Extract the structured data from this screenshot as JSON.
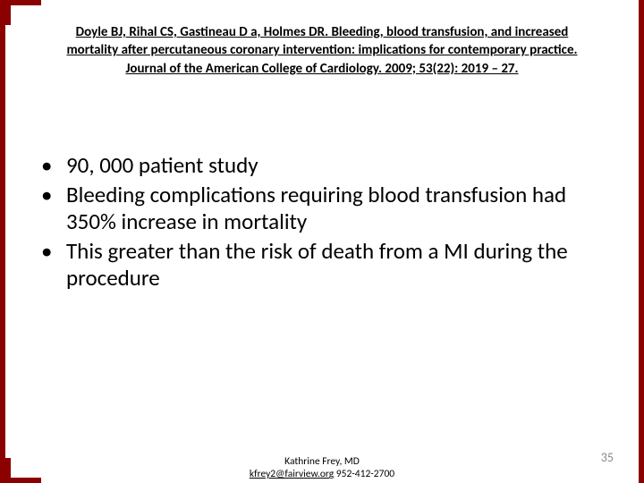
{
  "slide": {
    "border_color": "#8b0000",
    "background_color": "#ffffff"
  },
  "citation": {
    "text": "Doyle BJ, Rihal CS, Gastineau D a, Holmes DR. Bleeding, blood transfusion, and increased mortality after percutaneous coronary intervention: implications for contemporary practice. Journal of the American College of Cardiology. 2009; 53(22): 2019 – 27.",
    "font_size": 15,
    "font_weight": 700,
    "underline": true,
    "color": "#000000",
    "align": "center"
  },
  "bullets": {
    "font_size": 25,
    "color": "#000000",
    "items": [
      "90, 000 patient study",
      "Bleeding complications requiring blood transfusion had 350% increase in mortality",
      "This greater than the risk of death from a MI during the procedure"
    ]
  },
  "footer": {
    "author": "Kathrine Frey, MD",
    "email": "kfrey2@fairview.org",
    "phone": "952-412-2700",
    "font_size": 11.5,
    "color": "#000000"
  },
  "page_number": {
    "value": "35",
    "color": "#8a8a8a",
    "font_size": 14
  }
}
